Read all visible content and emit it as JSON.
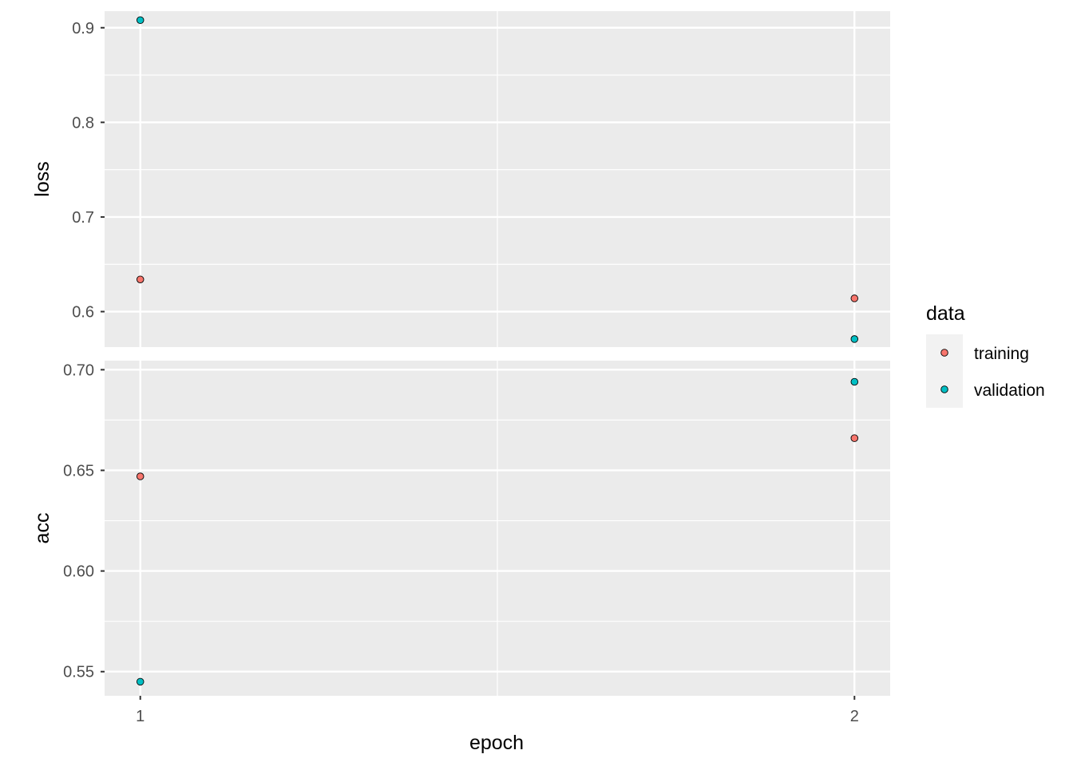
{
  "chart_data": {
    "type": "scatter",
    "xlabel": "epoch",
    "x_ticks": [
      "1",
      "2"
    ],
    "xlim": [
      0.95,
      2.05
    ],
    "legend": {
      "title": "data",
      "position": "right",
      "entries": [
        {
          "label": "training",
          "color": "#f8766d"
        },
        {
          "label": "validation",
          "color": "#00bfc4"
        }
      ]
    },
    "panels": [
      {
        "ylabel": "loss",
        "ylim": [
          0.5625,
          0.9175
        ],
        "y_ticks": [
          0.6,
          0.7,
          0.8,
          0.9
        ],
        "y_tick_labels": [
          "0.6",
          "0.7",
          "0.8",
          "0.9"
        ],
        "series": [
          {
            "name": "training",
            "x": [
              1,
              2
            ],
            "y": [
              0.634,
              0.614
            ]
          },
          {
            "name": "validation",
            "x": [
              1,
              2
            ],
            "y": [
              0.908,
              0.571
            ]
          }
        ]
      },
      {
        "ylabel": "acc",
        "ylim": [
          0.538,
          0.7045
        ],
        "y_ticks": [
          0.55,
          0.6,
          0.65,
          0.7
        ],
        "y_tick_labels": [
          "0.55",
          "0.60",
          "0.65",
          "0.70"
        ],
        "series": [
          {
            "name": "training",
            "x": [
              1,
              2
            ],
            "y": [
              0.647,
              0.666
            ]
          },
          {
            "name": "validation",
            "x": [
              1,
              2
            ],
            "y": [
              0.545,
              0.694
            ]
          }
        ]
      }
    ],
    "grid": true,
    "panel_background": "#ebebeb",
    "grid_color": "#ffffff"
  }
}
